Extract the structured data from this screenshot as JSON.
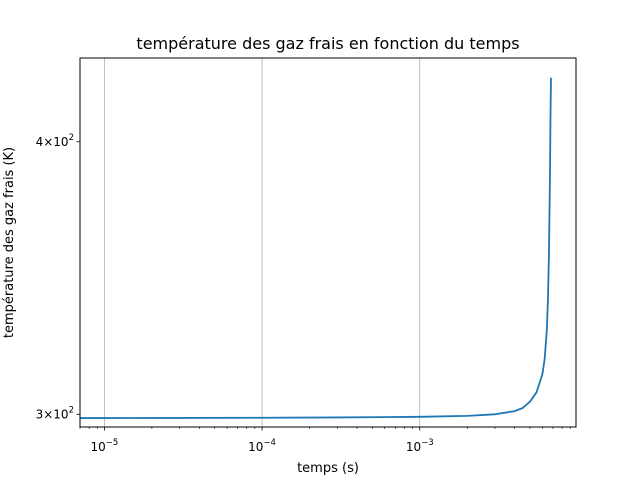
{
  "chart_data": {
    "type": "line",
    "title": "température des gaz frais en fonction du temps",
    "xlabel": "temps (s)",
    "ylabel": "température des gaz frais (K)",
    "xscale": "log",
    "yscale": "log",
    "xlim": [
      7e-06,
      0.0098
    ],
    "ylim": [
      296,
      437
    ],
    "grid": "x-axis only",
    "x_ticks": [
      {
        "value": 1e-05,
        "base": "10",
        "exp": "−5"
      },
      {
        "value": 0.0001,
        "base": "10",
        "exp": "−4"
      },
      {
        "value": 0.001,
        "base": "10",
        "exp": "−3"
      }
    ],
    "y_ticks": [
      {
        "value": 300,
        "prefix": "3×10",
        "exp": "2"
      },
      {
        "value": 400,
        "prefix": "4×10",
        "exp": "2"
      }
    ],
    "series": [
      {
        "color": "#1f77b4",
        "x": [
          7e-06,
          1e-05,
          3e-05,
          0.0001,
          0.0003,
          0.001,
          0.002,
          0.003,
          0.004,
          0.0045,
          0.005,
          0.0055,
          0.006,
          0.0062,
          0.0064,
          0.0065,
          0.0066,
          0.0067,
          0.00675,
          0.0068
        ],
        "y": [
          298.8,
          298.8,
          298.85,
          298.9,
          299.0,
          299.2,
          299.5,
          300.0,
          301.0,
          302.0,
          304.0,
          307.0,
          313.0,
          318.0,
          328.0,
          338.0,
          355.0,
          385.0,
          410.0,
          428.0
        ]
      }
    ]
  }
}
